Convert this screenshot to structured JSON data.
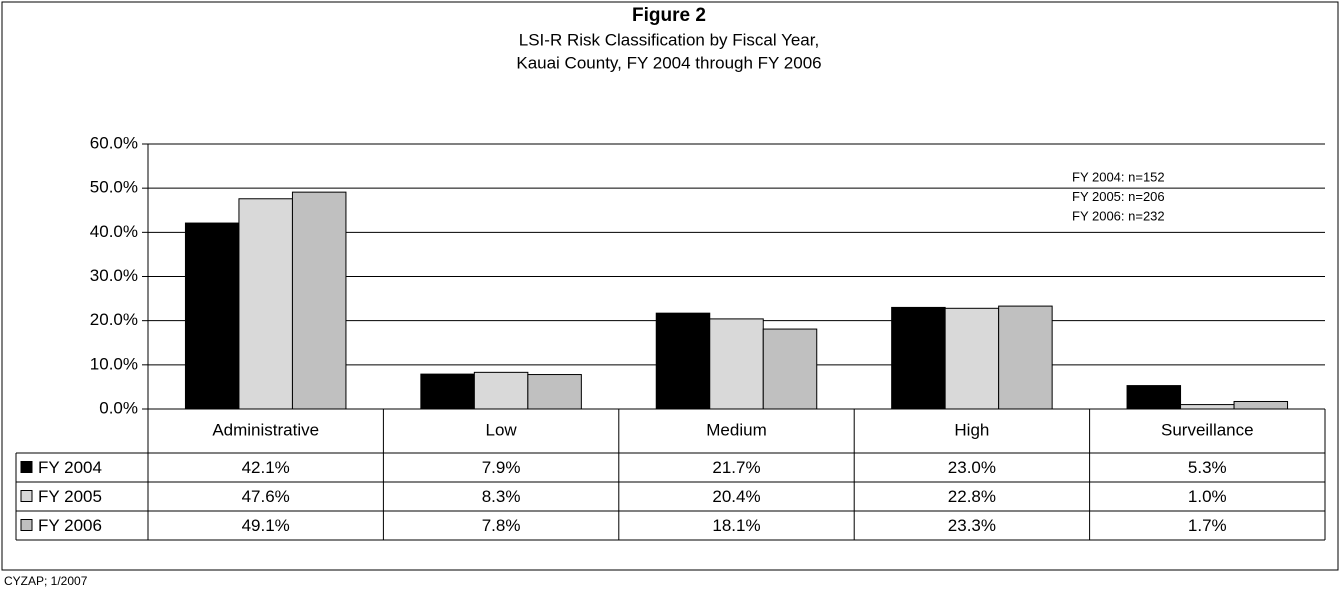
{
  "chart_data": {
    "type": "bar",
    "title": "Figure 2",
    "subtitle": [
      "LSI-R Risk Classification by Fiscal Year,",
      "Kauai County, FY 2004 through FY 2006"
    ],
    "categories": [
      "Administrative",
      "Low",
      "Medium",
      "High",
      "Surveillance"
    ],
    "series": [
      {
        "name": "FY 2004",
        "color": "#000000",
        "values": [
          42.1,
          7.9,
          21.7,
          23.0,
          5.3
        ],
        "value_labels": [
          "42.1%",
          "7.9%",
          "21.7%",
          "23.0%",
          "5.3%"
        ]
      },
      {
        "name": "FY 2005",
        "color": "#d9d9d9",
        "values": [
          47.6,
          8.3,
          20.4,
          22.8,
          1.0
        ],
        "value_labels": [
          "47.6%",
          "8.3%",
          "20.4%",
          "22.8%",
          "1.0%"
        ]
      },
      {
        "name": "FY 2006",
        "color": "#c0c0c0",
        "values": [
          49.1,
          7.8,
          18.1,
          23.3,
          1.7
        ],
        "value_labels": [
          "49.1%",
          "7.8%",
          "18.1%",
          "23.3%",
          "1.7%"
        ]
      }
    ],
    "ylim": [
      0,
      60
    ],
    "yticks": [
      {
        "value": 0,
        "label": "0.0%"
      },
      {
        "value": 10,
        "label": "10.0%"
      },
      {
        "value": 20,
        "label": "20.0%"
      },
      {
        "value": 30,
        "label": "30.0%"
      },
      {
        "value": 40,
        "label": "40.0%"
      },
      {
        "value": 50,
        "label": "50.0%"
      },
      {
        "value": 60,
        "label": "60.0%"
      }
    ],
    "grid": true,
    "annotations": [
      "FY 2004: n=152",
      "FY 2005: n=206",
      "FY 2006: n=232"
    ],
    "footer": "CYZAP; 1/2007"
  }
}
